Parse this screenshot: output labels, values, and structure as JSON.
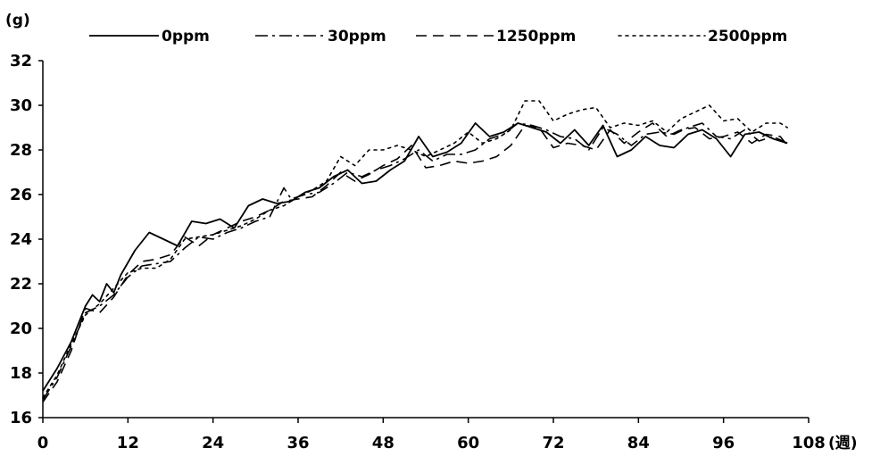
{
  "chart_data": {
    "type": "line",
    "ylabel": "(g)",
    "xlabel": "(週)",
    "xlim": [
      0,
      108
    ],
    "ylim": [
      16,
      32
    ],
    "x_ticks": [
      "0",
      "12",
      "24",
      "36",
      "48",
      "60",
      "72",
      "84",
      "96",
      "108"
    ],
    "y_ticks": [
      "16",
      "18",
      "20",
      "22",
      "24",
      "26",
      "28",
      "30",
      "32"
    ],
    "grid": false,
    "legend_position": "top",
    "series": [
      {
        "name": "0ppm",
        "dash": "solid",
        "points": [
          [
            0,
            17.2
          ],
          [
            2,
            18.2
          ],
          [
            4,
            19.4
          ],
          [
            6,
            21.0
          ],
          [
            7,
            21.5
          ],
          [
            8,
            21.2
          ],
          [
            9,
            22.0
          ],
          [
            10,
            21.6
          ],
          [
            11,
            22.4
          ],
          [
            13,
            23.5
          ],
          [
            15,
            24.3
          ],
          [
            17,
            24.0
          ],
          [
            19,
            23.7
          ],
          [
            21,
            24.8
          ],
          [
            23,
            24.7
          ],
          [
            25,
            24.9
          ],
          [
            27,
            24.5
          ],
          [
            29,
            25.5
          ],
          [
            31,
            25.8
          ],
          [
            33,
            25.6
          ],
          [
            35,
            25.7
          ],
          [
            37,
            26.1
          ],
          [
            39,
            26.3
          ],
          [
            41,
            26.8
          ],
          [
            43,
            27.1
          ],
          [
            45,
            26.5
          ],
          [
            47,
            26.6
          ],
          [
            49,
            27.1
          ],
          [
            51,
            27.5
          ],
          [
            53,
            28.6
          ],
          [
            55,
            27.7
          ],
          [
            57,
            27.9
          ],
          [
            59,
            28.3
          ],
          [
            61,
            29.2
          ],
          [
            63,
            28.6
          ],
          [
            65,
            28.8
          ],
          [
            67,
            29.2
          ],
          [
            69,
            29.0
          ],
          [
            71,
            28.8
          ],
          [
            73,
            28.3
          ],
          [
            75,
            28.9
          ],
          [
            77,
            28.2
          ],
          [
            79,
            29.1
          ],
          [
            81,
            27.7
          ],
          [
            83,
            28.0
          ],
          [
            85,
            28.6
          ],
          [
            87,
            28.2
          ],
          [
            89,
            28.1
          ],
          [
            91,
            28.7
          ],
          [
            93,
            28.9
          ],
          [
            95,
            28.5
          ],
          [
            97,
            27.7
          ],
          [
            99,
            28.7
          ],
          [
            101,
            28.8
          ],
          [
            103,
            28.5
          ],
          [
            105,
            28.3
          ]
        ]
      },
      {
        "name": "30ppm",
        "dash": "dashdot",
        "points": [
          [
            0,
            16.8
          ],
          [
            2,
            17.8
          ],
          [
            4,
            19.2
          ],
          [
            6,
            20.7
          ],
          [
            8,
            21.0
          ],
          [
            10,
            21.5
          ],
          [
            12,
            22.3
          ],
          [
            14,
            22.8
          ],
          [
            16,
            22.9
          ],
          [
            18,
            23.0
          ],
          [
            20,
            23.6
          ],
          [
            22,
            24.1
          ],
          [
            24,
            24.0
          ],
          [
            26,
            24.3
          ],
          [
            28,
            24.5
          ],
          [
            30,
            24.8
          ],
          [
            32,
            25.0
          ],
          [
            34,
            26.3
          ],
          [
            35,
            25.8
          ],
          [
            37,
            26.0
          ],
          [
            39,
            26.1
          ],
          [
            41,
            26.5
          ],
          [
            43,
            27.0
          ],
          [
            45,
            26.8
          ],
          [
            47,
            27.1
          ],
          [
            49,
            27.3
          ],
          [
            51,
            27.6
          ],
          [
            53,
            28.0
          ],
          [
            55,
            27.5
          ],
          [
            57,
            27.8
          ],
          [
            59,
            27.8
          ],
          [
            61,
            28.0
          ],
          [
            63,
            28.5
          ],
          [
            65,
            28.7
          ],
          [
            67,
            29.2
          ],
          [
            69,
            29.1
          ],
          [
            71,
            28.9
          ],
          [
            73,
            28.6
          ],
          [
            75,
            28.5
          ],
          [
            77,
            28.0
          ],
          [
            79,
            29.0
          ],
          [
            81,
            28.7
          ],
          [
            83,
            28.2
          ],
          [
            85,
            28.7
          ],
          [
            87,
            28.8
          ],
          [
            89,
            28.7
          ],
          [
            91,
            29.0
          ],
          [
            93,
            29.2
          ],
          [
            95,
            28.6
          ],
          [
            97,
            28.5
          ],
          [
            99,
            28.9
          ],
          [
            101,
            28.4
          ],
          [
            103,
            28.6
          ],
          [
            105,
            28.3
          ]
        ]
      },
      {
        "name": "1250ppm",
        "dash": "dashed",
        "points": [
          [
            0,
            16.7
          ],
          [
            2,
            17.6
          ],
          [
            4,
            19.0
          ],
          [
            6,
            20.9
          ],
          [
            8,
            20.7
          ],
          [
            10,
            21.4
          ],
          [
            12,
            22.4
          ],
          [
            14,
            23.0
          ],
          [
            16,
            23.1
          ],
          [
            18,
            23.3
          ],
          [
            20,
            24.1
          ],
          [
            22,
            23.7
          ],
          [
            24,
            24.2
          ],
          [
            26,
            24.5
          ],
          [
            28,
            24.8
          ],
          [
            30,
            25.0
          ],
          [
            32,
            25.3
          ],
          [
            34,
            25.7
          ],
          [
            36,
            25.8
          ],
          [
            38,
            25.9
          ],
          [
            40,
            26.4
          ],
          [
            42,
            27.0
          ],
          [
            44,
            26.6
          ],
          [
            46,
            26.9
          ],
          [
            48,
            27.3
          ],
          [
            50,
            27.6
          ],
          [
            52,
            28.2
          ],
          [
            54,
            27.2
          ],
          [
            56,
            27.3
          ],
          [
            58,
            27.5
          ],
          [
            60,
            27.4
          ],
          [
            62,
            27.5
          ],
          [
            64,
            27.7
          ],
          [
            66,
            28.2
          ],
          [
            68,
            29.1
          ],
          [
            70,
            29.0
          ],
          [
            72,
            28.1
          ],
          [
            74,
            28.3
          ],
          [
            76,
            28.2
          ],
          [
            78,
            28.0
          ],
          [
            80,
            28.9
          ],
          [
            82,
            28.3
          ],
          [
            84,
            28.8
          ],
          [
            86,
            29.2
          ],
          [
            88,
            28.6
          ],
          [
            90,
            28.9
          ],
          [
            92,
            29.0
          ],
          [
            94,
            28.5
          ],
          [
            96,
            28.6
          ],
          [
            98,
            28.8
          ],
          [
            100,
            28.3
          ],
          [
            102,
            28.7
          ],
          [
            104,
            28.6
          ],
          [
            105,
            28.2
          ]
        ]
      },
      {
        "name": "2500ppm",
        "dash": "dotted",
        "points": [
          [
            0,
            16.9
          ],
          [
            2,
            17.9
          ],
          [
            4,
            19.3
          ],
          [
            6,
            20.6
          ],
          [
            8,
            21.1
          ],
          [
            10,
            21.8
          ],
          [
            12,
            22.5
          ],
          [
            14,
            22.7
          ],
          [
            16,
            22.7
          ],
          [
            18,
            23.1
          ],
          [
            20,
            24.0
          ],
          [
            22,
            24.1
          ],
          [
            24,
            24.2
          ],
          [
            26,
            24.4
          ],
          [
            28,
            24.6
          ],
          [
            30,
            24.9
          ],
          [
            32,
            25.3
          ],
          [
            34,
            25.5
          ],
          [
            36,
            25.9
          ],
          [
            38,
            26.2
          ],
          [
            40,
            26.6
          ],
          [
            42,
            27.7
          ],
          [
            44,
            27.3
          ],
          [
            46,
            28.0
          ],
          [
            48,
            28.0
          ],
          [
            50,
            28.2
          ],
          [
            52,
            28.0
          ],
          [
            54,
            27.7
          ],
          [
            56,
            28.0
          ],
          [
            58,
            28.3
          ],
          [
            60,
            28.8
          ],
          [
            62,
            28.3
          ],
          [
            64,
            28.5
          ],
          [
            66,
            28.9
          ],
          [
            68,
            30.2
          ],
          [
            70,
            30.2
          ],
          [
            72,
            29.3
          ],
          [
            74,
            29.6
          ],
          [
            76,
            29.8
          ],
          [
            78,
            29.9
          ],
          [
            80,
            29.0
          ],
          [
            82,
            29.2
          ],
          [
            84,
            29.1
          ],
          [
            86,
            29.3
          ],
          [
            88,
            28.8
          ],
          [
            90,
            29.4
          ],
          [
            92,
            29.7
          ],
          [
            94,
            30.0
          ],
          [
            96,
            29.3
          ],
          [
            98,
            29.4
          ],
          [
            100,
            28.8
          ],
          [
            102,
            29.2
          ],
          [
            104,
            29.2
          ],
          [
            105,
            29.0
          ]
        ]
      }
    ]
  }
}
